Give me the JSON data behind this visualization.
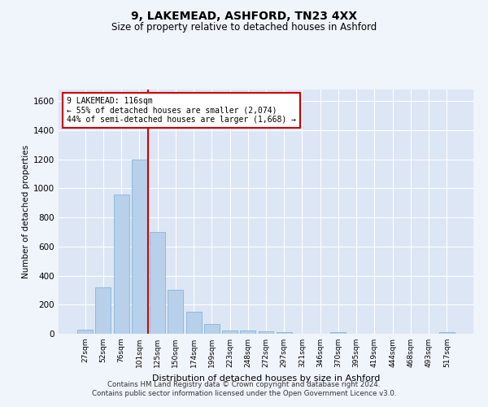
{
  "title": "9, LAKEMEAD, ASHFORD, TN23 4XX",
  "subtitle": "Size of property relative to detached houses in Ashford",
  "xlabel": "Distribution of detached houses by size in Ashford",
  "ylabel": "Number of detached properties",
  "bar_color": "#b8d0ea",
  "bar_edgecolor": "#7aadd4",
  "background_color": "#dce6f5",
  "grid_color": "#ffffff",
  "fig_facecolor": "#f0f4fb",
  "categories": [
    "27sqm",
    "52sqm",
    "76sqm",
    "101sqm",
    "125sqm",
    "150sqm",
    "174sqm",
    "199sqm",
    "223sqm",
    "248sqm",
    "272sqm",
    "297sqm",
    "321sqm",
    "346sqm",
    "370sqm",
    "395sqm",
    "419sqm",
    "444sqm",
    "468sqm",
    "493sqm",
    "517sqm"
  ],
  "values": [
    30,
    320,
    960,
    1200,
    700,
    300,
    150,
    70,
    25,
    20,
    15,
    10,
    0,
    0,
    10,
    0,
    0,
    0,
    0,
    0,
    10
  ],
  "ylim": [
    0,
    1680
  ],
  "yticks": [
    0,
    200,
    400,
    600,
    800,
    1000,
    1200,
    1400,
    1600
  ],
  "vline_color": "#cc0000",
  "vline_x": 3.5,
  "annotation_text": "9 LAKEMEAD: 116sqm\n← 55% of detached houses are smaller (2,074)\n44% of semi-detached houses are larger (1,668) →",
  "annotation_box_color": "#ffffff",
  "annotation_box_edgecolor": "#cc0000",
  "footer_line1": "Contains HM Land Registry data © Crown copyright and database right 2024.",
  "footer_line2": "Contains public sector information licensed under the Open Government Licence v3.0."
}
